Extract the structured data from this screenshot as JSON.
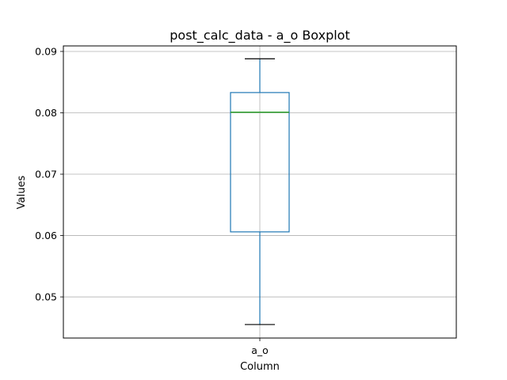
{
  "chart_data": {
    "type": "box",
    "title": "post_calc_data - a_o Boxplot",
    "xlabel": "Column",
    "ylabel": "Values",
    "categories": [
      "a_o"
    ],
    "ylim": [
      0.0433,
      0.0909
    ],
    "yticks": [
      0.05,
      0.06,
      0.07,
      0.08,
      0.09
    ],
    "ytick_labels": [
      "0.05",
      "0.06",
      "0.07",
      "0.08",
      "0.09"
    ],
    "grid": true,
    "boxes": [
      {
        "category": "a_o",
        "whisker_low": 0.0455,
        "q1": 0.0606,
        "median": 0.0801,
        "q3": 0.0833,
        "whisker_high": 0.0888
      }
    ],
    "colors": {
      "box": "#1f77b4",
      "median": "#2ca02c",
      "caps": "#000000",
      "grid": "#b0b0b0"
    }
  }
}
